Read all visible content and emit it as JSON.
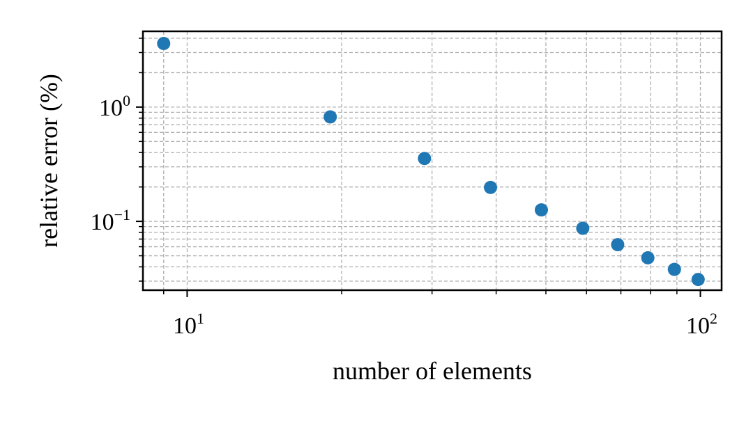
{
  "chart_data": {
    "type": "scatter",
    "title": "",
    "xlabel": "number of elements",
    "ylabel": "relative error (%)",
    "xscale": "log",
    "yscale": "log",
    "xlim": [
      8.2,
      110
    ],
    "ylim": [
      0.025,
      4.6
    ],
    "grid": true,
    "legend": "none",
    "x_ticks": [
      {
        "value": 10,
        "base": "10",
        "exp": "1"
      },
      {
        "value": 100,
        "base": "10",
        "exp": "2"
      }
    ],
    "y_ticks": [
      {
        "value": 1,
        "base": "10",
        "exp": "0"
      },
      {
        "value": 0.1,
        "base": "10",
        "exp": "−1"
      }
    ],
    "series": [
      {
        "color": "#1f77b4",
        "x": [
          9,
          19,
          29,
          39,
          49,
          59,
          69,
          79,
          89,
          99
        ],
        "y": [
          3.6,
          0.82,
          0.355,
          0.198,
          0.126,
          0.087,
          0.0625,
          0.048,
          0.038,
          0.031
        ]
      }
    ]
  }
}
